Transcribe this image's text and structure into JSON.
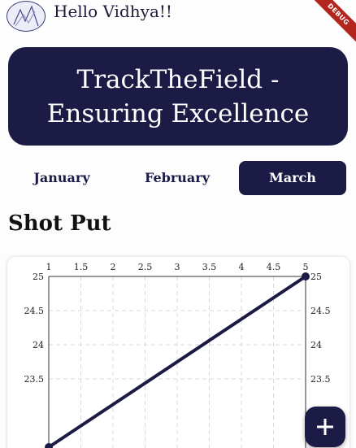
{
  "header": {
    "greeting": "Hello Vidhya!!",
    "debug_label": "DEBUG"
  },
  "banner": {
    "title_line1": "TrackTheField -",
    "title_line2": "Ensuring Excellence"
  },
  "months": [
    {
      "label": "January",
      "active": false
    },
    {
      "label": "February",
      "active": false
    },
    {
      "label": "March",
      "active": true
    }
  ],
  "event": {
    "title": "Shot Put"
  },
  "colors": {
    "primary": "#1c1b46",
    "line": "#1c1b46",
    "grid": "#d9d9d9"
  },
  "chart_data": {
    "type": "line",
    "x": [
      1,
      5
    ],
    "series": [
      {
        "values": [
          22.5,
          25
        ]
      }
    ],
    "x_ticks": [
      "1",
      "1.5",
      "2",
      "2.5",
      "3",
      "3.5",
      "4",
      "4.5",
      "5"
    ],
    "y_ticks_left": [
      "25",
      "24.5",
      "24",
      "23.5"
    ],
    "y_ticks_right": [
      "25",
      "24.5",
      "24",
      "23.5"
    ],
    "xlim": [
      1,
      5
    ],
    "ylim": [
      22.5,
      25
    ],
    "grid": true,
    "x_axis_position": "top",
    "y_axis_position": "both"
  },
  "fab": {
    "icon": "plus-icon",
    "symbol": "+"
  }
}
